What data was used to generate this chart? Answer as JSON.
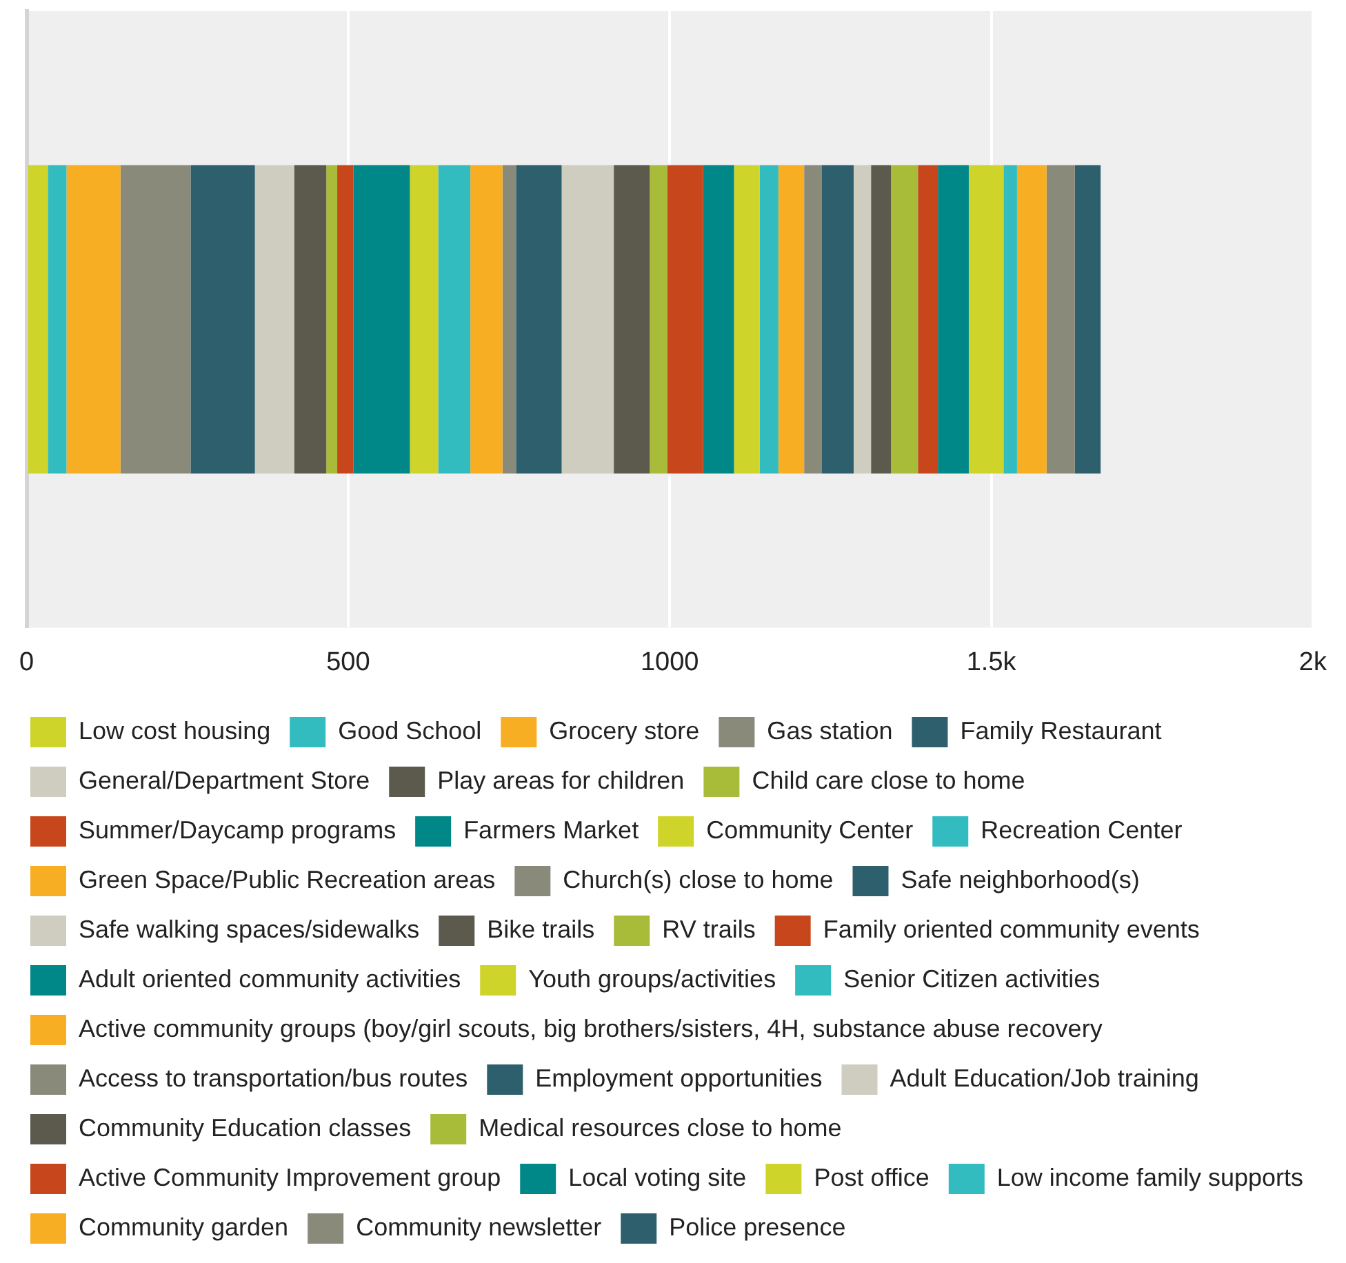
{
  "chart_data": {
    "type": "bar",
    "orientation": "horizontal",
    "stacked": true,
    "categories": [
      null
    ],
    "xlim": [
      0,
      2000
    ],
    "xticks": [
      0,
      500,
      1000,
      {
        "value": 1500,
        "label": "1.5k"
      },
      {
        "value": 2000,
        "label": "2k"
      }
    ],
    "grid": "x",
    "legend": "bottom",
    "tick_labels": "x",
    "series": [
      {
        "name": "Low cost housing",
        "color": "#cfd42a",
        "values": [
          33
        ]
      },
      {
        "name": "Good School",
        "color": "#33bcbf",
        "values": [
          29
        ]
      },
      {
        "name": "Grocery store",
        "color": "#f7ae22",
        "values": [
          84
        ]
      },
      {
        "name": "Gas station",
        "color": "#8a8a7a",
        "values": [
          109
        ]
      },
      {
        "name": "Family Restaurant",
        "color": "#2e5f6c",
        "values": [
          100
        ]
      },
      {
        "name": "General/Department Store",
        "color": "#cfcdbf",
        "values": [
          61
        ]
      },
      {
        "name": "Play areas for children",
        "color": "#5c5a4c",
        "values": [
          50
        ]
      },
      {
        "name": "Child care close to home",
        "color": "#a8bc3a",
        "values": [
          17
        ]
      },
      {
        "name": "Summer/Daycamp programs",
        "color": "#c8461c",
        "values": [
          25
        ]
      },
      {
        "name": "Farmers Market",
        "color": "#008888",
        "values": [
          88
        ]
      },
      {
        "name": "Community Center",
        "color": "#cfd42a",
        "values": [
          44
        ]
      },
      {
        "name": "Recreation Center",
        "color": "#33bcbf",
        "values": [
          50
        ]
      },
      {
        "name": "Green Space/Public Recreation areas",
        "color": "#f7ae22",
        "values": [
          50
        ]
      },
      {
        "name": "Church(s) close to home",
        "color": "#8a8a7a",
        "values": [
          21
        ]
      },
      {
        "name": "Safe neighborhood(s)",
        "color": "#2e5f6c",
        "values": [
          71
        ]
      },
      {
        "name": "Safe walking spaces/sidewalks",
        "color": "#cfcdbf",
        "values": [
          81
        ]
      },
      {
        "name": "Bike trails",
        "color": "#5c5a4c",
        "values": [
          56
        ]
      },
      {
        "name": "RV trails",
        "color": "#a8bc3a",
        "values": [
          27
        ]
      },
      {
        "name": "Family oriented community events",
        "color": "#c8461c",
        "values": [
          56
        ]
      },
      {
        "name": "Adult oriented community activities",
        "color": "#008888",
        "values": [
          48
        ]
      },
      {
        "name": "Youth groups/activities",
        "color": "#cfd42a",
        "values": [
          40
        ]
      },
      {
        "name": "Senior Citizen activities",
        "color": "#33bcbf",
        "values": [
          29
        ]
      },
      {
        "name": "Active community groups (boy/girl scouts, big brothers/sisters, 4H, substance abuse recovery",
        "color": "#f7ae22",
        "values": [
          40
        ]
      },
      {
        "name": "Access to transportation/bus routes",
        "color": "#8a8a7a",
        "values": [
          27
        ]
      },
      {
        "name": "Employment opportunities",
        "color": "#2e5f6c",
        "values": [
          50
        ]
      },
      {
        "name": "Adult Education/Job training",
        "color": "#cfcdbf",
        "values": [
          27
        ]
      },
      {
        "name": "Community Education classes",
        "color": "#5c5a4c",
        "values": [
          31
        ]
      },
      {
        "name": "Medical resources close to home",
        "color": "#a8bc3a",
        "values": [
          42
        ]
      },
      {
        "name": "Active Community Improvement group",
        "color": "#c8461c",
        "values": [
          31
        ]
      },
      {
        "name": "Local voting site",
        "color": "#008888",
        "values": [
          48
        ]
      },
      {
        "name": "Post office",
        "color": "#cfd42a",
        "values": [
          54
        ]
      },
      {
        "name": "Low income family supports",
        "color": "#33bcbf",
        "values": [
          21
        ]
      },
      {
        "name": "Community garden",
        "color": "#f7ae22",
        "values": [
          46
        ]
      },
      {
        "name": "Community newsletter",
        "color": "#8a8a7a",
        "values": [
          44
        ]
      },
      {
        "name": "Police presence",
        "color": "#2e5f6c",
        "values": [
          40
        ]
      }
    ]
  }
}
